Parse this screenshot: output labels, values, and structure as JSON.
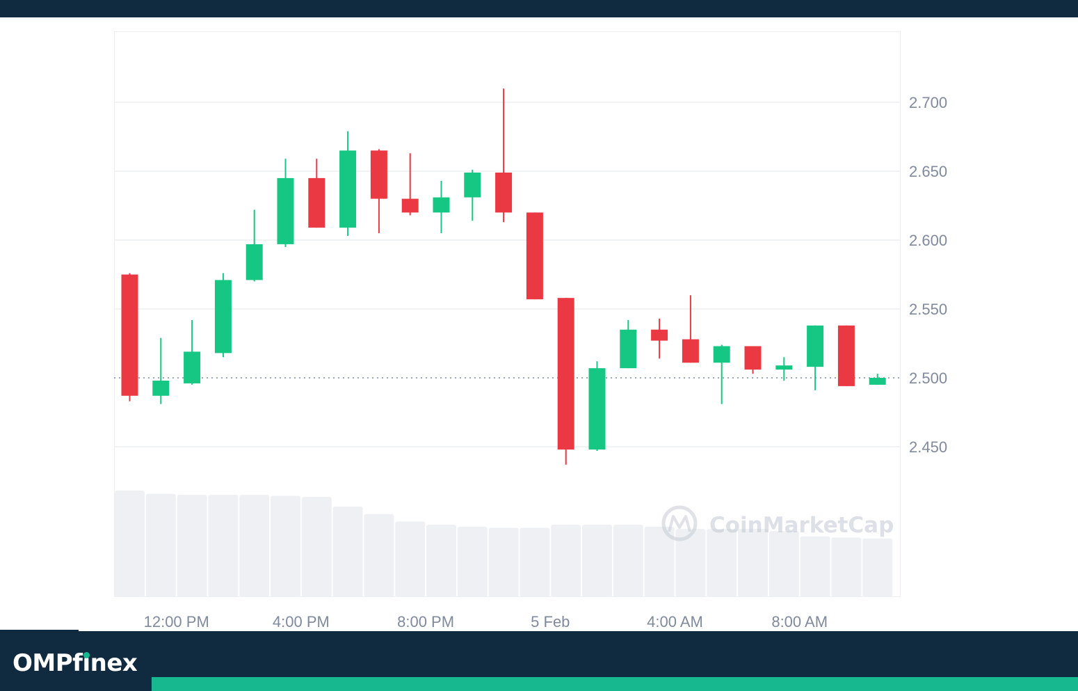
{
  "brand": {
    "name_prefix": "OMPf",
    "name_i": "i",
    "name_suffix": "nex"
  },
  "watermark": "CoinMarketCap",
  "colors": {
    "up": "#16c784",
    "down": "#ea3943",
    "grid": "#eceef1",
    "volume": "#eef0f3",
    "axis_text": "#808a9d",
    "brand_dark": "#102a40",
    "brand_accent": "#17b890"
  },
  "chart_data": {
    "type": "candlestick",
    "title": "",
    "xlabel": "",
    "ylabel": "",
    "ylim": [
      2.4,
      2.75
    ],
    "yticks": [
      "2.700",
      "2.650",
      "2.600",
      "2.550",
      "2.500",
      "2.450"
    ],
    "ytick_values": [
      2.7,
      2.65,
      2.6,
      2.55,
      2.5,
      2.45
    ],
    "xtick_labels": [
      "12:00 PM",
      "4:00 PM",
      "8:00 PM",
      "5 Feb",
      "4:00 AM",
      "8:00 AM"
    ],
    "xtick_candle_index": [
      1.5,
      5.5,
      9.5,
      13.5,
      17.5,
      21.5
    ],
    "reference_line": 2.5,
    "grid": true,
    "candles": [
      {
        "open": 2.575,
        "high": 2.576,
        "low": 2.483,
        "close": 2.487
      },
      {
        "open": 2.487,
        "high": 2.529,
        "low": 2.481,
        "close": 2.498
      },
      {
        "open": 2.496,
        "high": 2.542,
        "low": 2.495,
        "close": 2.519
      },
      {
        "open": 2.518,
        "high": 2.576,
        "low": 2.515,
        "close": 2.571
      },
      {
        "open": 2.571,
        "high": 2.622,
        "low": 2.57,
        "close": 2.597
      },
      {
        "open": 2.597,
        "high": 2.659,
        "low": 2.595,
        "close": 2.645
      },
      {
        "open": 2.645,
        "high": 2.659,
        "low": 2.609,
        "close": 2.609
      },
      {
        "open": 2.609,
        "high": 2.679,
        "low": 2.603,
        "close": 2.665
      },
      {
        "open": 2.665,
        "high": 2.666,
        "low": 2.605,
        "close": 2.63
      },
      {
        "open": 2.63,
        "high": 2.663,
        "low": 2.618,
        "close": 2.62
      },
      {
        "open": 2.62,
        "high": 2.643,
        "low": 2.605,
        "close": 2.631
      },
      {
        "open": 2.631,
        "high": 2.651,
        "low": 2.614,
        "close": 2.649
      },
      {
        "open": 2.649,
        "high": 2.71,
        "low": 2.613,
        "close": 2.62
      },
      {
        "open": 2.62,
        "high": 2.62,
        "low": 2.557,
        "close": 2.557
      },
      {
        "open": 2.558,
        "high": 2.558,
        "low": 2.437,
        "close": 2.448
      },
      {
        "open": 2.448,
        "high": 2.512,
        "low": 2.447,
        "close": 2.507
      },
      {
        "open": 2.507,
        "high": 2.542,
        "low": 2.507,
        "close": 2.535
      },
      {
        "open": 2.535,
        "high": 2.543,
        "low": 2.514,
        "close": 2.527
      },
      {
        "open": 2.528,
        "high": 2.56,
        "low": 2.511,
        "close": 2.511
      },
      {
        "open": 2.511,
        "high": 2.524,
        "low": 2.481,
        "close": 2.523
      },
      {
        "open": 2.523,
        "high": 2.523,
        "low": 2.503,
        "close": 2.506
      },
      {
        "open": 2.506,
        "high": 2.515,
        "low": 2.498,
        "close": 2.509
      },
      {
        "open": 2.508,
        "high": 2.538,
        "low": 2.491,
        "close": 2.538
      },
      {
        "open": 2.538,
        "high": 2.538,
        "low": 2.494,
        "close": 2.494
      },
      {
        "open": 2.495,
        "high": 2.503,
        "low": 2.495,
        "close": 2.5
      }
    ],
    "volume_relative": [
      1.0,
      0.97,
      0.96,
      0.96,
      0.96,
      0.95,
      0.94,
      0.85,
      0.78,
      0.71,
      0.68,
      0.66,
      0.65,
      0.65,
      0.68,
      0.68,
      0.68,
      0.66,
      0.64,
      0.64,
      0.64,
      0.62,
      0.57,
      0.56,
      0.55
    ]
  }
}
